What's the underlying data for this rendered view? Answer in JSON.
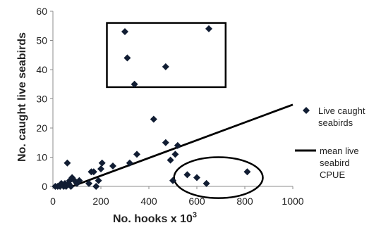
{
  "chart_data": {
    "type": "scatter",
    "xlabel": "No. hooks x 10",
    "xlabel_sup": "3",
    "ylabel": "No. caught live seabirds",
    "xlim": [
      0,
      1000
    ],
    "ylim": [
      0,
      60
    ],
    "x_ticks": [
      0,
      200,
      400,
      600,
      800,
      1000
    ],
    "y_ticks": [
      0,
      10,
      20,
      30,
      40,
      50,
      60
    ],
    "grid": false,
    "legend_placement": "right",
    "series": [
      {
        "name": "Live caught seabirds",
        "name_lines": [
          "Live caught",
          "seabirds"
        ],
        "marker": "diamond",
        "color": "#111d33",
        "points": [
          [
            10,
            0
          ],
          [
            20,
            0
          ],
          [
            30,
            0
          ],
          [
            35,
            1
          ],
          [
            45,
            0
          ],
          [
            50,
            1
          ],
          [
            55,
            0
          ],
          [
            60,
            8
          ],
          [
            65,
            1
          ],
          [
            70,
            2
          ],
          [
            75,
            0
          ],
          [
            80,
            3
          ],
          [
            90,
            2
          ],
          [
            100,
            1
          ],
          [
            110,
            2
          ],
          [
            150,
            1
          ],
          [
            160,
            5
          ],
          [
            170,
            5
          ],
          [
            180,
            0
          ],
          [
            190,
            2
          ],
          [
            200,
            6
          ],
          [
            205,
            8
          ],
          [
            250,
            7
          ],
          [
            300,
            53
          ],
          [
            310,
            44
          ],
          [
            320,
            8
          ],
          [
            340,
            35
          ],
          [
            350,
            11
          ],
          [
            420,
            23
          ],
          [
            470,
            41
          ],
          [
            470,
            15
          ],
          [
            490,
            9
          ],
          [
            500,
            2
          ],
          [
            510,
            11
          ],
          [
            520,
            14
          ],
          [
            560,
            4
          ],
          [
            600,
            3
          ],
          [
            640,
            1
          ],
          [
            650,
            54
          ],
          [
            810,
            5
          ]
        ]
      },
      {
        "name": "mean live seabird CPUE",
        "name_lines": [
          "mean live",
          "seabird",
          "CPUE"
        ],
        "type": "line",
        "color": "#000000",
        "points": [
          [
            80,
            0
          ],
          [
            1000,
            28
          ]
        ]
      }
    ],
    "annotations": [
      {
        "shape": "rectangle",
        "x0": 225,
        "x1": 720,
        "y0": 34,
        "y1": 56
      },
      {
        "shape": "ellipse",
        "cx": 690,
        "cy": 3,
        "rx": 185,
        "ry": 7
      }
    ]
  }
}
